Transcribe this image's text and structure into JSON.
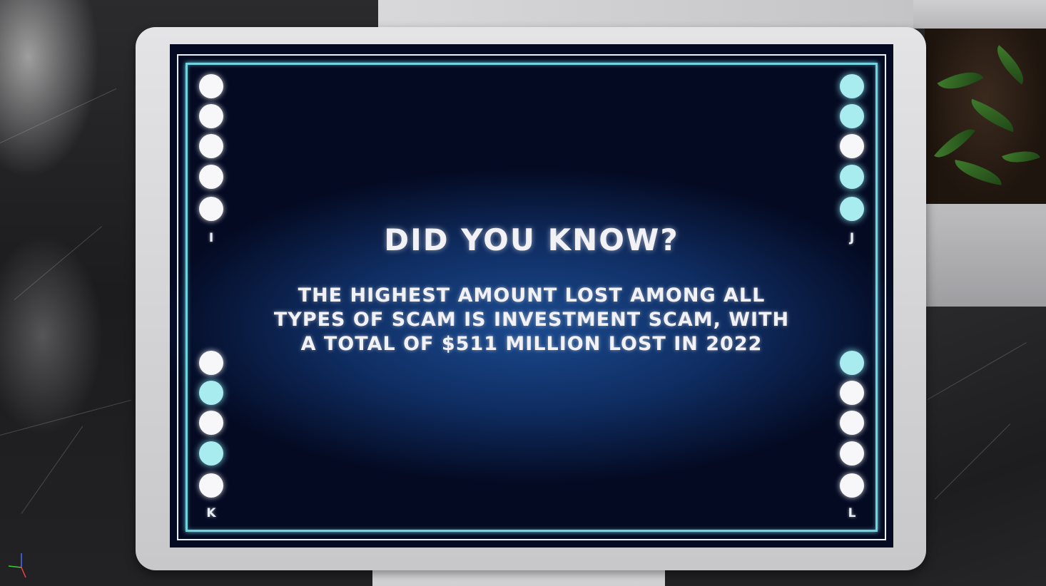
{
  "board": {
    "title": "DID YOU KNOW?",
    "fact_line_1": "THE HIGHEST AMOUNT LOST AMONG ALL",
    "fact_line_2": "TYPES OF SCAM IS INVESTMENT SCAM, WITH",
    "fact_line_3": "A TOTAL OF $511 MILLION LOST IN 2022"
  },
  "corners": [
    {
      "label": "I",
      "lights": [
        "white",
        "white",
        "white",
        "white",
        "white"
      ]
    },
    {
      "label": "J",
      "lights": [
        "cyan",
        "cyan",
        "white",
        "cyan",
        "cyan"
      ]
    },
    {
      "label": "K",
      "lights": [
        "white",
        "cyan",
        "white",
        "cyan",
        "white"
      ]
    },
    {
      "label": "L",
      "lights": [
        "cyan",
        "white",
        "white",
        "white",
        "white"
      ]
    }
  ],
  "colors": {
    "light_white": "#f7f7f9",
    "light_cyan": "#a8ecf0",
    "border_cyan": "#6fd3e0"
  }
}
